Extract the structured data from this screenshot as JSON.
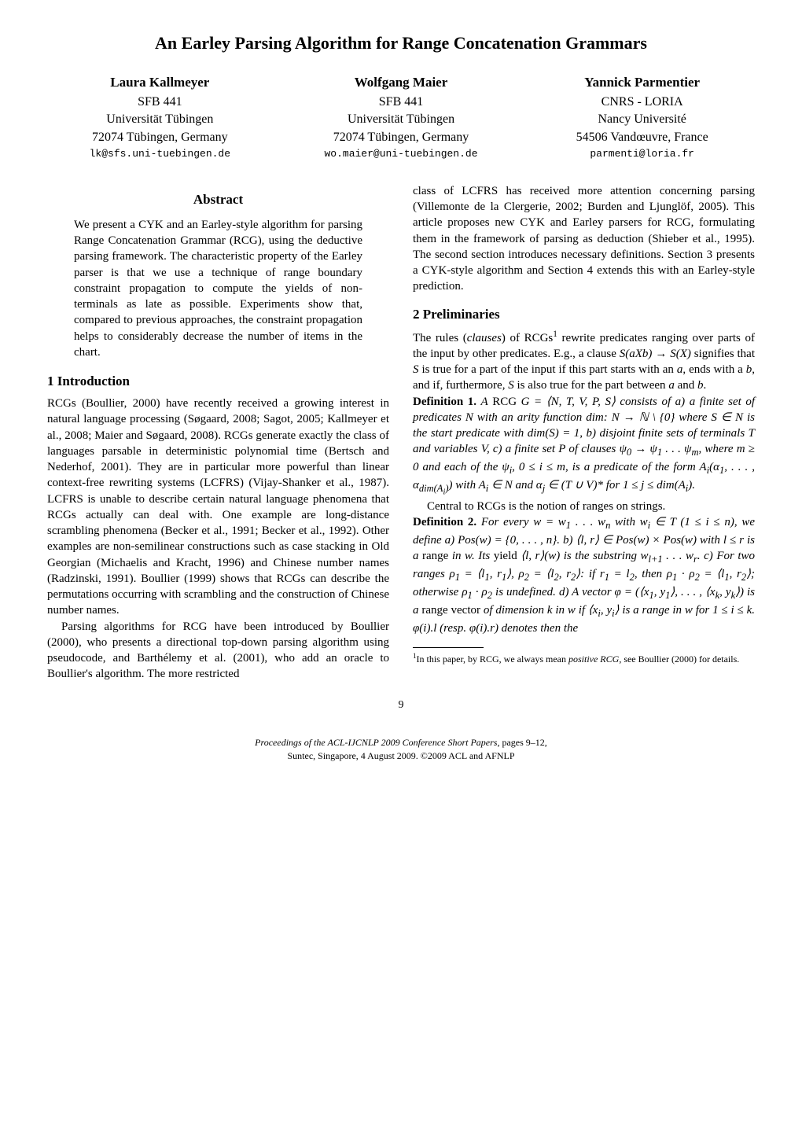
{
  "title": "An Earley Parsing Algorithm for Range Concatenation Grammars",
  "authors": [
    {
      "name": "Laura Kallmeyer",
      "lines": [
        "SFB 441",
        "Universität Tübingen",
        "72074 Tübingen, Germany"
      ],
      "email": "lk@sfs.uni-tuebingen.de"
    },
    {
      "name": "Wolfgang Maier",
      "lines": [
        "SFB 441",
        "Universität Tübingen",
        "72074 Tübingen, Germany"
      ],
      "email": "wo.maier@uni-tuebingen.de"
    },
    {
      "name": "Yannick Parmentier",
      "lines": [
        "CNRS - LORIA",
        "Nancy Université",
        "54506 Vandœuvre, France"
      ],
      "email": "parmenti@loria.fr"
    }
  ],
  "abstract": {
    "heading": "Abstract",
    "text": "We present a CYK and an Earley-style algorithm for parsing Range Concatenation Grammar (RCG), using the deductive parsing framework. The characteristic property of the Earley parser is that we use a technique of range boundary constraint propagation to compute the yields of non-terminals as late as possible. Experiments show that, compared to previous approaches, the constraint propagation helps to considerably decrease the number of items in the chart."
  },
  "sections": {
    "s1": {
      "heading": "1   Introduction",
      "p1": "RCGs (Boullier, 2000) have recently received a growing interest in natural language processing (Søgaard, 2008; Sagot, 2005; Kallmeyer et al., 2008; Maier and Søgaard, 2008). RCGs generate exactly the class of languages parsable in deterministic polynomial time (Bertsch and Nederhof, 2001). They are in particular more powerful than linear context-free rewriting systems (LCFRS) (Vijay-Shanker et al., 1987). LCFRS is unable to describe certain natural language phenomena that RCGs actually can deal with. One example are long-distance scrambling phenomena (Becker et al., 1991; Becker et al., 1992). Other examples are non-semilinear constructions such as case stacking in Old Georgian (Michaelis and Kracht, 1996) and Chinese number names (Radzinski, 1991). Boullier (1999) shows that RCGs can describe the permutations occurring with scrambling and the construction of Chinese number names.",
      "p2": "Parsing algorithms for RCG have been introduced by Boullier (2000), who presents a directional top-down parsing algorithm using pseudocode, and Barthélemy et al. (2001), who add an oracle to Boullier's algorithm. The more restricted"
    },
    "rightTop": "class of LCFRS has received more attention concerning parsing (Villemonte de la Clergerie, 2002; Burden and Ljunglöf, 2005). This article proposes new CYK and Earley parsers for RCG, formulating them in the framework of parsing as deduction (Shieber et al., 1995). The second section introduces necessary definitions. Section 3 presents a CYK-style algorithm and Section 4 extends this with an Earley-style prediction.",
    "s2": {
      "heading": "2   Preliminaries",
      "p1_html": "The rules (<span class='it'>clauses</span>) of RCGs<span class='sup'>1</span> rewrite predicates ranging over parts of the input by other predicates. E.g., a clause <span class='it'>S(aXb) → S(X)</span> signifies that <span class='it'>S</span> is true for a part of the input if this part starts with an <span class='it'>a</span>, ends with a <span class='it'>b</span>, and if, furthermore, <span class='it'>S</span> is also true for the part between <span class='it'>a</span> and <span class='it'>b</span>.",
      "def1_html": "<b>Definition 1.</b> <span class='it'>A</span> RCG <span class='it'>G = ⟨N, T, V, P, S⟩ consists of a) a finite set of predicates N with an arity function dim: N → ℕ \\ {0} where S ∈ N is the start predicate with dim(S) = 1, b) disjoint finite sets of terminals T and variables V, c) a finite set P of clauses ψ<sub>0</sub> → ψ<sub>1</sub> . . . ψ<sub>m</sub>, where m ≥ 0 and each of the ψ<sub>i</sub>, 0 ≤ i ≤ m, is a predicate of the form A<sub>i</sub>(α<sub>1</sub>, . . . , α<sub>dim(A<sub>i</sub>)</sub>) with A<sub>i</sub> ∈ N and α<sub>j</sub> ∈ (T ∪ V)* for 1 ≤ j ≤ dim(A<sub>i</sub>).</span>",
      "p2": "Central to RCGs is the notion of ranges on strings.",
      "def2_html": "<b>Definition 2.</b> <span class='it'>For every w = w<sub>1</sub> . . . w<sub>n</sub> with w<sub>i</sub> ∈ T (1 ≤ i ≤ n), we define a) Pos(w) = {0, . . . , n}. b) ⟨l, r⟩ ∈ Pos(w) × Pos(w) with l ≤ r is a</span> range <span class='it'>in w. Its</span> yield <span class='it'>⟨l, r⟩(w) is the substring w<sub>l+1</sub> . . . w<sub>r</sub>. c) For two ranges ρ<sub>1</sub> = ⟨l<sub>1</sub>, r<sub>1</sub>⟩, ρ<sub>2</sub> = ⟨l<sub>2</sub>, r<sub>2</sub>⟩: if r<sub>1</sub> = l<sub>2</sub>, then ρ<sub>1</sub> · ρ<sub>2</sub> = ⟨l<sub>1</sub>, r<sub>2</sub>⟩; otherwise ρ<sub>1</sub> · ρ<sub>2</sub> is undefined. d) A vector φ = (⟨x<sub>1</sub>, y<sub>1</sub>⟩, . . . , ⟨x<sub>k</sub>, y<sub>k</sub>⟩) is a</span> range vector <span class='it'>of dimension k in w if ⟨x<sub>i</sub>, y<sub>i</sub>⟩ is a range in w for 1 ≤ i ≤ k. φ(i).l (resp. φ(i).r) denotes then the</span>"
    }
  },
  "footnote_html": "<span class='sup'>1</span>In this paper, by RCG, we always mean <span class='it'>positive RCG</span>, see Boullier (2000) for details.",
  "footer": {
    "line1_html": "<span class='it'>Proceedings of the ACL-IJCNLP 2009 Conference Short Papers</span>, pages 9–12,",
    "line2": "Suntec, Singapore, 4 August 2009. ©2009 ACL and AFNLP"
  },
  "pagenum": "9"
}
